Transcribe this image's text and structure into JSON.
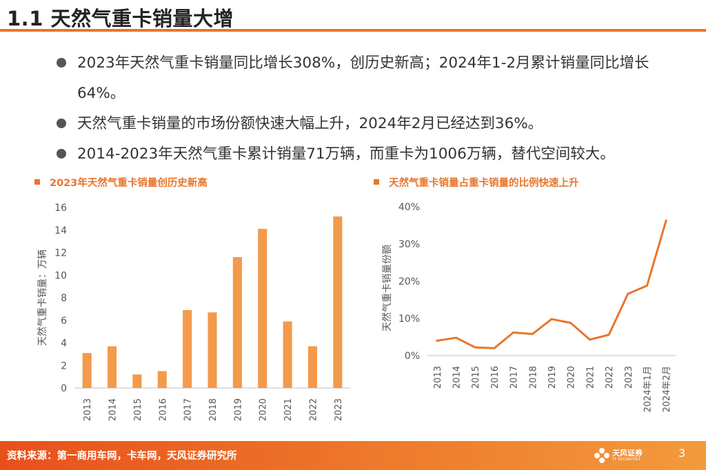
{
  "page": {
    "title": "1.1 天然气重卡销量大增",
    "page_number": "3"
  },
  "bullets": [
    "2023年天然气重卡销量同比增长308%，创历史新高；2024年1-2月累计销量同比增长64%。",
    "天然气重卡销量的市场份额快速大幅上升，2024年2月已经达到36%。",
    "2014-2023年天然气重卡累计销量71万辆，而重卡为1006万辆，替代空间较大。"
  ],
  "chart_data": [
    {
      "type": "bar",
      "title": "2023年天然气重卡销量创历史新高",
      "ylabel": "天然气重卡销量：万辆",
      "xlabel": "",
      "categories": [
        "2013",
        "2014",
        "2015",
        "2016",
        "2017",
        "2018",
        "2019",
        "2020",
        "2021",
        "2022",
        "2023"
      ],
      "values": [
        3.1,
        3.7,
        1.2,
        1.5,
        6.9,
        6.7,
        11.6,
        14.1,
        5.9,
        3.7,
        15.2
      ],
      "ylim": [
        0,
        16
      ],
      "yticks": [
        0,
        2,
        4,
        6,
        8,
        10,
        12,
        14,
        16
      ],
      "ytick_labels": [
        "0",
        "2",
        "4",
        "6",
        "8",
        "10",
        "12",
        "14",
        "16"
      ],
      "color": "#f39a4c",
      "grid": false,
      "legend": "none"
    },
    {
      "type": "line",
      "title": "天然气重卡销量占重卡销量的比例快速上升",
      "ylabel": "天然气重卡销量份额",
      "xlabel": "",
      "categories": [
        "2013",
        "2014",
        "2015",
        "2016",
        "2017",
        "2018",
        "2019",
        "2020",
        "2021",
        "2022",
        "2023",
        "2024年1月",
        "2024年2月"
      ],
      "values": [
        4.0,
        4.8,
        2.2,
        2.0,
        6.2,
        5.8,
        9.8,
        8.8,
        4.3,
        5.6,
        16.6,
        18.8,
        36.3
      ],
      "ylim": [
        0,
        40
      ],
      "yticks": [
        0,
        10,
        20,
        30,
        40
      ],
      "ytick_labels": [
        "0%",
        "10%",
        "20%",
        "30%",
        "40%"
      ],
      "color": "#e8762b",
      "grid": false,
      "legend": "none"
    }
  ],
  "footer": {
    "source": "资料来源：第一商用车网，卡车网，天风证券研究所",
    "logo_cn": "天风证券",
    "logo_en": "TF SECURITIES"
  },
  "colors": {
    "accent": "#e8762b",
    "bar": "#f39a4c",
    "footer_start": "#e8501b",
    "footer_end": "#f39a3c"
  }
}
